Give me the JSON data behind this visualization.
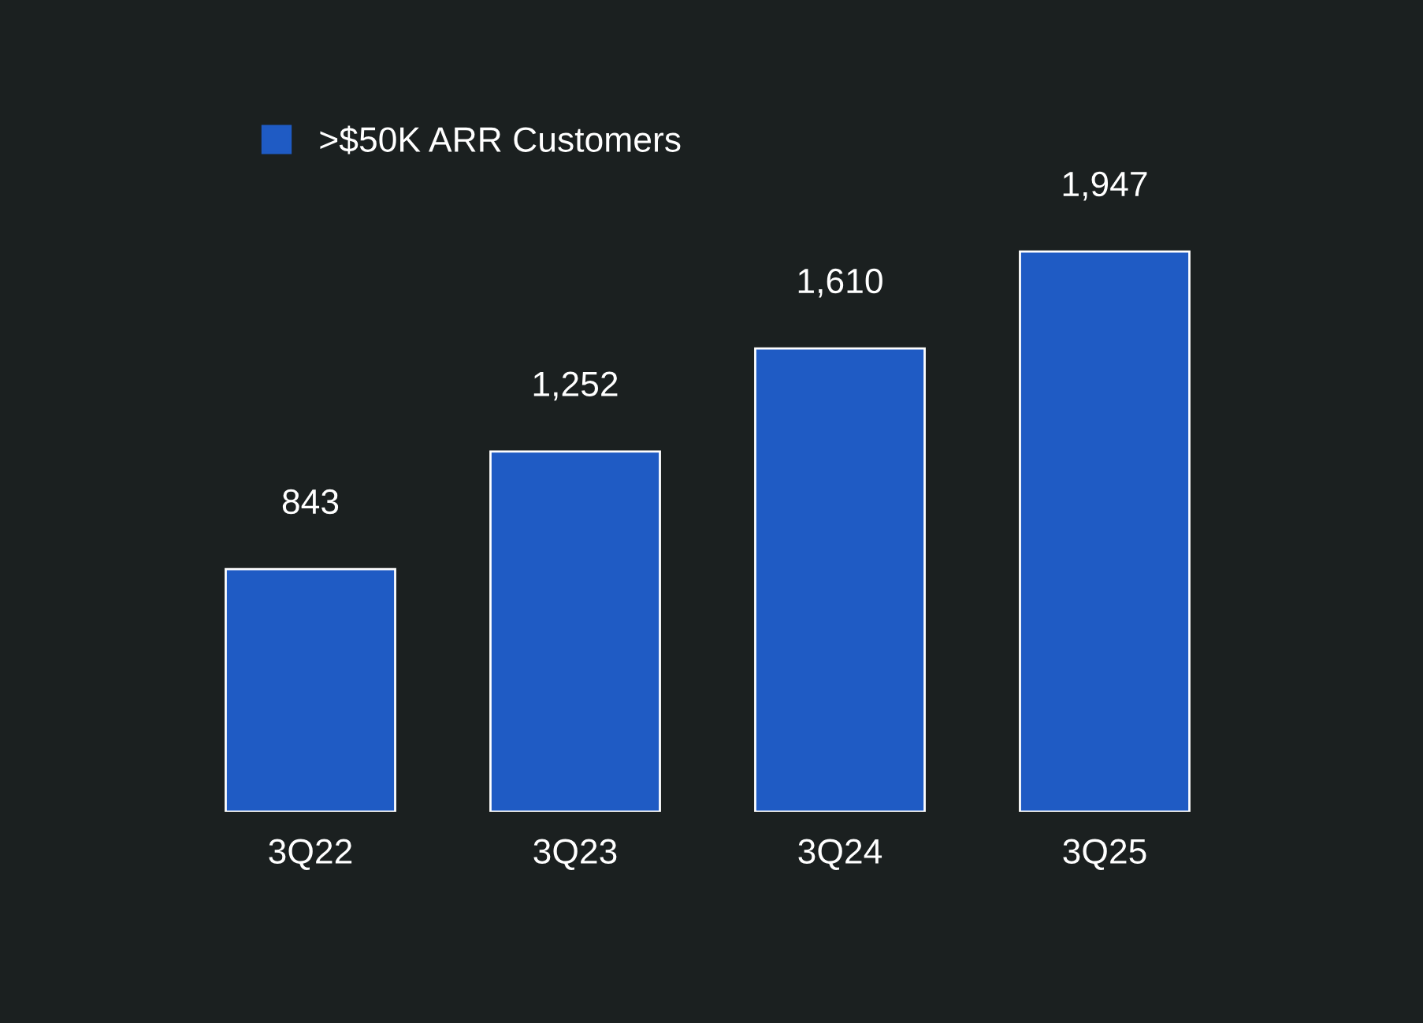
{
  "chart_data": {
    "type": "bar",
    "categories": [
      "3Q22",
      "3Q23",
      "3Q24",
      "3Q25"
    ],
    "series": [
      {
        "name": ">$50K ARR Customers",
        "color": "#1f5bc4",
        "values": [
          843,
          1252,
          1610,
          1947
        ],
        "value_labels": [
          "843",
          "1,252",
          "1,610",
          "1,947"
        ]
      }
    ],
    "legend": "top left",
    "grid": false,
    "tick_labels": "x"
  }
}
